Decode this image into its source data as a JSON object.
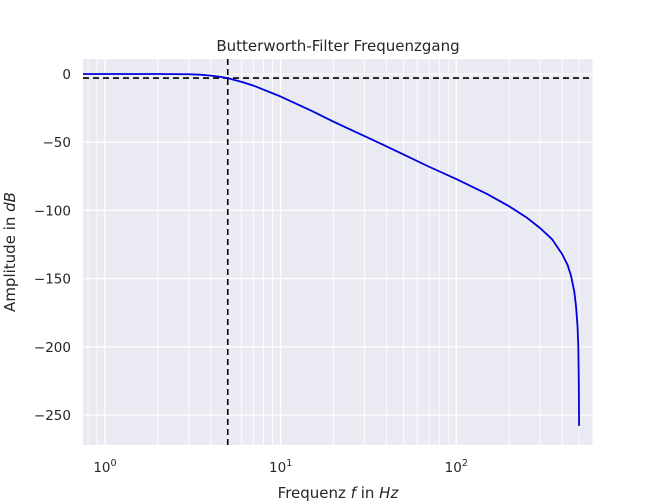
{
  "chart_data": {
    "type": "line",
    "title": "Butterworth-Filter Frequenzgang",
    "xlabel": {
      "prefix": "Frequenz ",
      "symbol": "f",
      "middle": " in ",
      "unit": "Hz"
    },
    "ylabel": {
      "prefix": "Amplitude in ",
      "unit": "dB"
    },
    "xscale": "log",
    "xlim": [
      0.75,
      600
    ],
    "ylim": [
      -272,
      11
    ],
    "grid": true,
    "x_ticks": [
      {
        "value": 1,
        "base": "10",
        "exp": "0"
      },
      {
        "value": 10,
        "base": "10",
        "exp": "1"
      },
      {
        "value": 100,
        "base": "10",
        "exp": "2"
      }
    ],
    "y_ticks": [
      {
        "value": 0,
        "label": "0"
      },
      {
        "value": -50,
        "label": "−50"
      },
      {
        "value": -100,
        "label": "−100"
      },
      {
        "value": -150,
        "label": "−150"
      },
      {
        "value": -200,
        "label": "−200"
      },
      {
        "value": -250,
        "label": "−250"
      }
    ],
    "series": [
      {
        "color": "#0000dd",
        "x": [
          0.75,
          1,
          2,
          3,
          3.5,
          4,
          4.5,
          5,
          5.5,
          6,
          7,
          8,
          10,
          15,
          20,
          30,
          40,
          50,
          70,
          100,
          150,
          200,
          250,
          300,
          350,
          400,
          430,
          450,
          470,
          480,
          490,
          495,
          498,
          500
        ],
        "y": [
          0,
          0,
          0,
          -0.2,
          -0.5,
          -1.2,
          -2.0,
          -3.0,
          -4.5,
          -5.8,
          -8.5,
          -11.5,
          -16.5,
          -27,
          -35,
          -45.5,
          -53,
          -59,
          -68,
          -77,
          -88,
          -97,
          -105,
          -113,
          -121,
          -132,
          -140,
          -148,
          -160,
          -170,
          -185,
          -200,
          -225,
          -258
        ]
      }
    ],
    "reference_lines": [
      {
        "orientation": "horizontal",
        "value": -3,
        "style": "dashed",
        "color": "#000000"
      },
      {
        "orientation": "vertical",
        "value": 5,
        "style": "dashed",
        "color": "#000000"
      }
    ]
  }
}
